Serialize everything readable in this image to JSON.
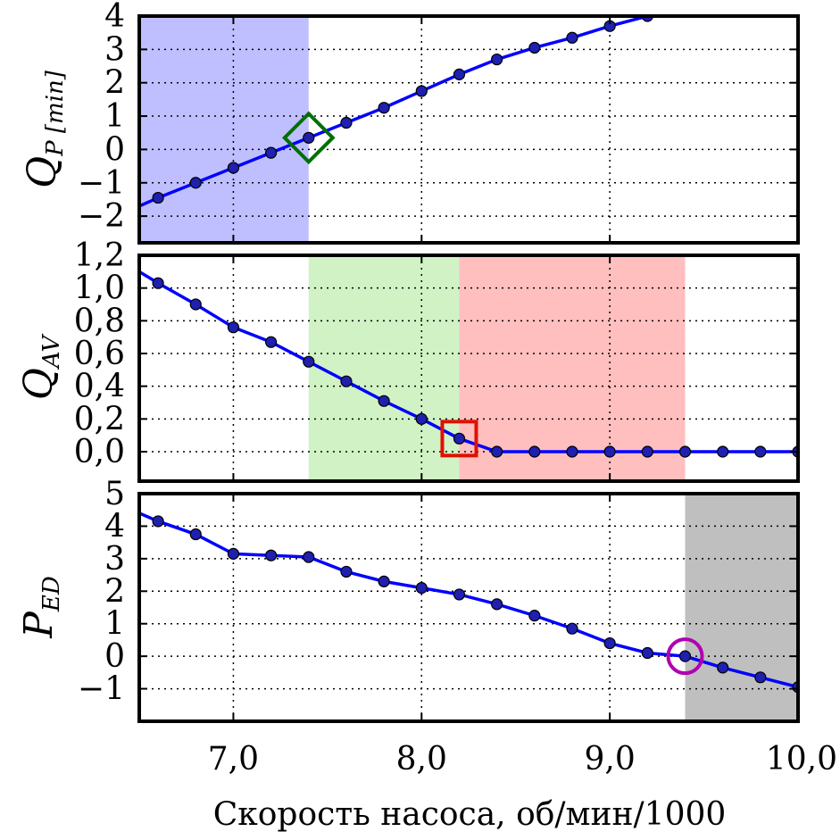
{
  "chart_data": [
    {
      "type": "line",
      "ylabel": "Q",
      "ylabel_sub": "P [min]",
      "xlim": [
        6.5,
        10.0
      ],
      "ylim": [
        -2.8,
        4.0
      ],
      "yticks": [
        -2,
        -1,
        0,
        1,
        2,
        3,
        4
      ],
      "ytick_labels": [
        "−2",
        "−1",
        "0",
        "1",
        "2",
        "3",
        "4"
      ],
      "grid": true,
      "line_color": "#0000ff",
      "marker_color": "#1f1fb0",
      "x": [
        6.5,
        6.6,
        6.8,
        7.0,
        7.2,
        7.4,
        7.6,
        7.8,
        8.0,
        8.2,
        8.4,
        8.6,
        8.8,
        9.0,
        9.2
      ],
      "y": [
        -1.7,
        -1.45,
        -1.0,
        -0.55,
        -0.1,
        0.35,
        0.8,
        1.25,
        1.75,
        2.25,
        2.7,
        3.05,
        3.35,
        3.7,
        4.0
      ],
      "markers_x": [
        6.6,
        6.8,
        7.0,
        7.2,
        7.4,
        7.6,
        7.8,
        8.0,
        8.2,
        8.4,
        8.6,
        8.8,
        9.0,
        9.2
      ],
      "regions": [
        {
          "x0": 6.5,
          "x1": 7.4,
          "color": "#bfbfff"
        }
      ],
      "annotation": {
        "shape": "diamond",
        "x": 7.4,
        "y": 0.35,
        "color": "#007000"
      }
    },
    {
      "type": "line",
      "ylabel": "Q",
      "ylabel_sub": "AV",
      "xlim": [
        6.5,
        10.0
      ],
      "ylim": [
        -0.18,
        1.2
      ],
      "yticks": [
        0.0,
        0.2,
        0.4,
        0.6,
        0.8,
        1.0,
        1.2
      ],
      "ytick_labels": [
        "0,0",
        "0,2",
        "0,4",
        "0,6",
        "0,8",
        "1,0",
        "1,2"
      ],
      "grid": true,
      "line_color": "#0000ff",
      "marker_color": "#1f1fb0",
      "x": [
        6.5,
        6.6,
        6.8,
        7.0,
        7.2,
        7.4,
        7.6,
        7.8,
        8.0,
        8.2,
        8.4,
        8.6,
        8.8,
        9.0,
        9.2,
        9.4,
        9.6,
        9.8,
        10.0
      ],
      "y": [
        1.1,
        1.03,
        0.9,
        0.76,
        0.67,
        0.55,
        0.43,
        0.31,
        0.2,
        0.08,
        0.0,
        0.0,
        0.0,
        0.0,
        0.0,
        0.0,
        0.0,
        0.0,
        0.0
      ],
      "markers_x": [
        6.6,
        6.8,
        7.0,
        7.2,
        7.4,
        7.6,
        7.8,
        8.0,
        8.2,
        8.4,
        8.6,
        8.8,
        9.0,
        9.2,
        9.4,
        9.6,
        9.8,
        10.0
      ],
      "regions": [
        {
          "x0": 7.4,
          "x1": 8.2,
          "color": "#d0f2c4"
        },
        {
          "x0": 8.2,
          "x1": 9.4,
          "color": "#ffbfbf"
        }
      ],
      "annotation": {
        "shape": "square",
        "x": 8.2,
        "y": 0.08,
        "color": "#e01000"
      }
    },
    {
      "type": "line",
      "ylabel": "P",
      "ylabel_sub": "ED",
      "xlim": [
        6.5,
        10.0
      ],
      "ylim": [
        -2.0,
        5.0
      ],
      "yticks": [
        -1,
        0,
        1,
        2,
        3,
        4,
        5
      ],
      "ytick_labels": [
        "−1",
        "0",
        "1",
        "2",
        "3",
        "4",
        "5"
      ],
      "grid": true,
      "line_color": "#0000ff",
      "marker_color": "#1f1fb0",
      "x": [
        6.5,
        6.6,
        6.8,
        7.0,
        7.2,
        7.4,
        7.6,
        7.8,
        8.0,
        8.2,
        8.4,
        8.6,
        8.8,
        9.0,
        9.2,
        9.4,
        9.6,
        9.8,
        10.0
      ],
      "y": [
        4.4,
        4.15,
        3.75,
        3.15,
        3.1,
        3.05,
        2.6,
        2.3,
        2.1,
        1.9,
        1.6,
        1.25,
        0.85,
        0.4,
        0.1,
        0.0,
        -0.35,
        -0.65,
        -0.95
      ],
      "markers_x": [
        6.6,
        6.8,
        7.0,
        7.2,
        7.4,
        7.6,
        7.8,
        8.0,
        8.2,
        8.4,
        8.6,
        8.8,
        9.0,
        9.2,
        9.4,
        9.6,
        9.8,
        10.0
      ],
      "regions": [
        {
          "x0": 9.4,
          "x1": 10.0,
          "color": "#bfbfbf"
        }
      ],
      "annotation": {
        "shape": "circle",
        "x": 9.4,
        "y": 0.0,
        "color": "#b000b0"
      }
    }
  ],
  "xaxis": {
    "label": "Скорость насоса, об/мин/1000",
    "ticks": [
      7.0,
      8.0,
      9.0,
      10.0
    ],
    "tick_labels": [
      "7,0",
      "8,0",
      "9,0",
      "10,0"
    ]
  }
}
